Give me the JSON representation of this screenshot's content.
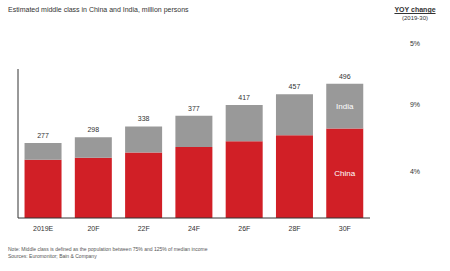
{
  "chart_data": {
    "type": "bar",
    "title": "Estimated middle class in China and India, million persons",
    "categories": [
      "2019E",
      "20F",
      "22F",
      "24F",
      "26F",
      "28F",
      "30F"
    ],
    "series": [
      {
        "name": "China",
        "color": "#d11f26",
        "values": [
          215,
          222,
          242,
          262,
          283,
          305,
          330
        ],
        "yoy_change": "4%"
      },
      {
        "name": "India",
        "color": "#999999",
        "values": [
          62,
          76,
          96,
          115,
          134,
          152,
          166
        ],
        "yoy_change": "9%"
      }
    ],
    "totals": [
      277,
      298,
      338,
      377,
      417,
      457,
      496
    ],
    "total_yoy_change": "5%",
    "yoy_title": "YOY change",
    "yoy_subtitle": "(2019-30)",
    "notes": [
      "Note: Middle class is defined as the population between 75% and 125% of median income",
      "Sources: Euromonitor; Bain & Company"
    ],
    "stacked": true,
    "ylim": [
      0,
      550
    ],
    "tick_labels": "x",
    "grid": false
  }
}
